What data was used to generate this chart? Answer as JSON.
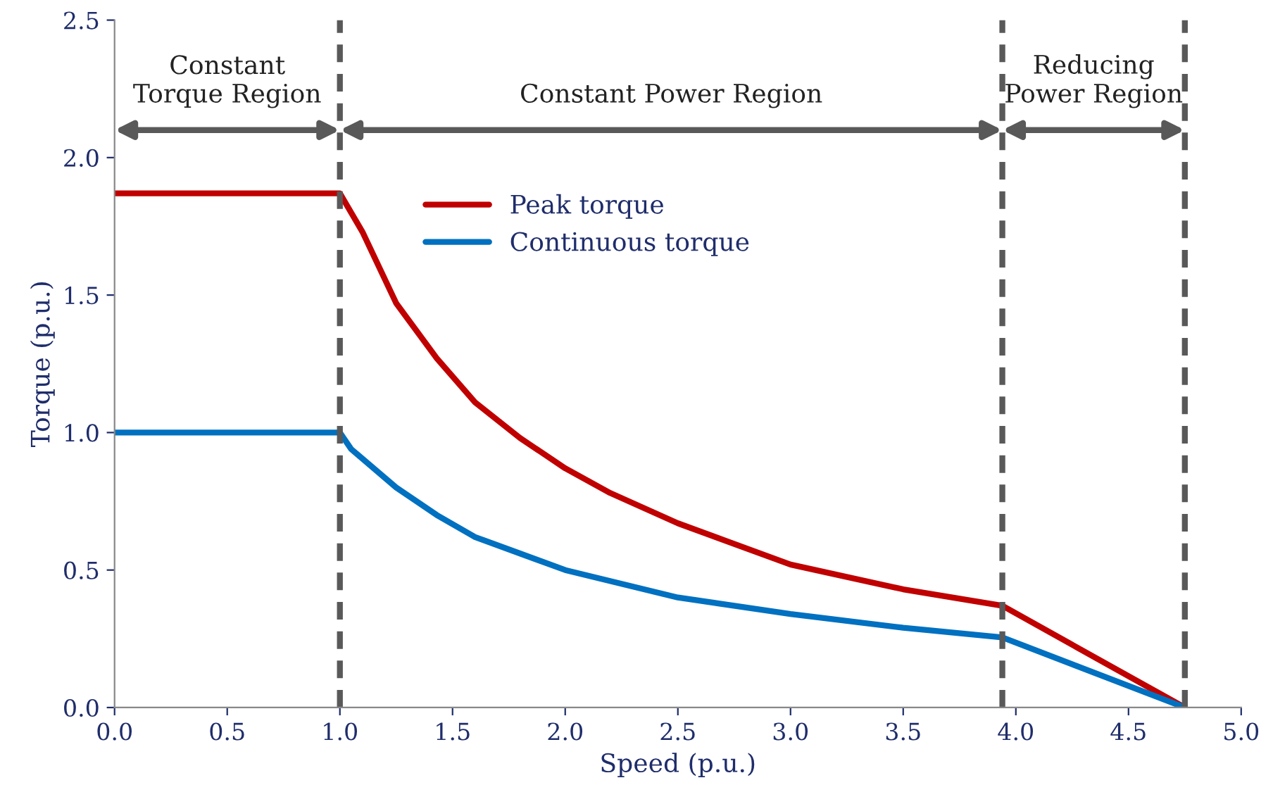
{
  "chart_data": {
    "type": "line",
    "xlabel": "Speed (p.u.)",
    "ylabel": "Torque (p.u.)",
    "xlim": [
      0,
      5
    ],
    "ylim": [
      0,
      2.5
    ],
    "xticks": [
      {
        "value": 0,
        "label": "0.0"
      },
      {
        "value": 0.5,
        "label": "0.5"
      },
      {
        "value": 1,
        "label": "1.0"
      },
      {
        "value": 1.5,
        "label": "1.5"
      },
      {
        "value": 2,
        "label": "2.0"
      },
      {
        "value": 2.5,
        "label": "2.5"
      },
      {
        "value": 3,
        "label": "3.0"
      },
      {
        "value": 3.5,
        "label": "3.5"
      },
      {
        "value": 4,
        "label": "4.0"
      },
      {
        "value": 4.5,
        "label": "4.5"
      },
      {
        "value": 5,
        "label": "5.0"
      }
    ],
    "yticks": [
      {
        "value": 0,
        "label": "0.0"
      },
      {
        "value": 0.5,
        "label": "0.5"
      },
      {
        "value": 1,
        "label": "1.0"
      },
      {
        "value": 1.5,
        "label": "1.5"
      },
      {
        "value": 2,
        "label": "2.0"
      },
      {
        "value": 2.5,
        "label": "2.5"
      }
    ],
    "series": [
      {
        "name": "Peak torque",
        "color": "#c00000",
        "x": [
          0,
          1.0,
          1.1,
          1.25,
          1.43,
          1.6,
          1.8,
          2.0,
          2.2,
          2.5,
          3.0,
          3.5,
          3.94,
          4.75
        ],
        "values": [
          1.87,
          1.87,
          1.73,
          1.47,
          1.27,
          1.11,
          0.98,
          0.87,
          0.78,
          0.67,
          0.52,
          0.43,
          0.37,
          0
        ]
      },
      {
        "name": "Continuous torque",
        "color": "#0070c0",
        "x": [
          0,
          1.0,
          1.05,
          1.25,
          1.43,
          1.6,
          1.8,
          2.0,
          2.25,
          2.5,
          3.0,
          3.5,
          3.94,
          4.75
        ],
        "values": [
          1.0,
          1.0,
          0.94,
          0.8,
          0.7,
          0.62,
          0.56,
          0.5,
          0.45,
          0.4,
          0.34,
          0.29,
          0.255,
          0
        ]
      }
    ],
    "ref_lines": [
      {
        "axis": "x",
        "value": 1.0,
        "color": "#595959",
        "line_style": "dashed"
      },
      {
        "axis": "x",
        "value": 3.94,
        "color": "#595959",
        "line_style": "dashed"
      },
      {
        "axis": "x",
        "value": 4.75,
        "color": "#595959",
        "line_style": "dashed"
      }
    ],
    "annotations": [
      "Constant\nTorque Region",
      "Constant Power Region",
      "Reducing\nPower Region"
    ],
    "legend": "top",
    "grid": false,
    "line_style": "solid",
    "marker": "none"
  }
}
